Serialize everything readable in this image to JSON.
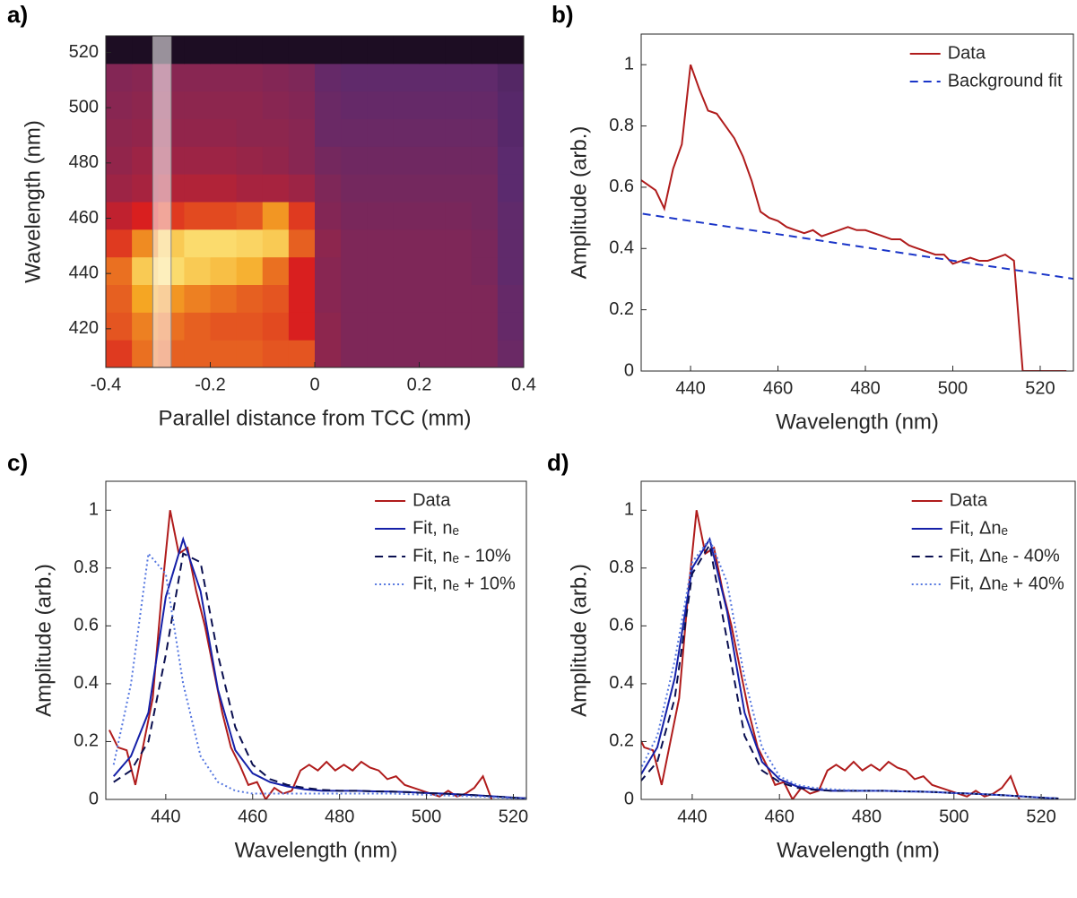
{
  "chart_data": [
    {
      "type": "heatmap",
      "panel_label": "a)",
      "xlabel": "Parallel distance from TCC (mm)",
      "ylabel": "Wavelength (nm)",
      "xlim": [
        -0.4,
        0.4
      ],
      "ylim": [
        406,
        526
      ],
      "xticks": [
        -0.4,
        -0.2,
        0,
        0.2,
        0.4
      ],
      "yticks": [
        420,
        440,
        460,
        480,
        500,
        520
      ],
      "colormap": [
        "#000000",
        "#5b2a6e",
        "#d91f1f",
        "#f5a623",
        "#ffff9e"
      ],
      "highlight": [
        -0.31,
        -0.275
      ],
      "xbins": [
        -0.4,
        -0.35,
        -0.3,
        -0.25,
        -0.2,
        -0.15,
        -0.1,
        -0.05,
        0,
        0.05,
        0.1,
        0.15,
        0.2,
        0.25,
        0.3,
        0.35,
        0.4
      ],
      "ybins": [
        406,
        416,
        426,
        436,
        446,
        456,
        466,
        476,
        486,
        496,
        506,
        516,
        526
      ],
      "values": [
        [
          0.55,
          0.65,
          0.62,
          0.62,
          0.62,
          0.62,
          0.6,
          0.6,
          0.35,
          0.32,
          0.32,
          0.32,
          0.32,
          0.32,
          0.32,
          0.28
        ],
        [
          0.6,
          0.68,
          0.65,
          0.62,
          0.6,
          0.6,
          0.58,
          0.5,
          0.35,
          0.32,
          0.32,
          0.32,
          0.32,
          0.32,
          0.32,
          0.27
        ],
        [
          0.62,
          0.75,
          0.72,
          0.68,
          0.65,
          0.62,
          0.6,
          0.5,
          0.34,
          0.32,
          0.32,
          0.32,
          0.32,
          0.32,
          0.32,
          0.27
        ],
        [
          0.65,
          0.85,
          0.9,
          0.85,
          0.82,
          0.78,
          0.65,
          0.5,
          0.34,
          0.32,
          0.32,
          0.32,
          0.32,
          0.32,
          0.31,
          0.26
        ],
        [
          0.55,
          0.7,
          0.85,
          0.9,
          0.9,
          0.88,
          0.85,
          0.62,
          0.35,
          0.32,
          0.32,
          0.32,
          0.32,
          0.32,
          0.31,
          0.26
        ],
        [
          0.45,
          0.5,
          0.55,
          0.58,
          0.58,
          0.6,
          0.72,
          0.55,
          0.33,
          0.31,
          0.31,
          0.31,
          0.31,
          0.31,
          0.3,
          0.26
        ],
        [
          0.38,
          0.4,
          0.42,
          0.42,
          0.42,
          0.4,
          0.4,
          0.38,
          0.32,
          0.3,
          0.3,
          0.3,
          0.3,
          0.3,
          0.3,
          0.25
        ],
        [
          0.36,
          0.38,
          0.38,
          0.38,
          0.38,
          0.37,
          0.36,
          0.34,
          0.3,
          0.29,
          0.29,
          0.29,
          0.29,
          0.29,
          0.29,
          0.25
        ],
        [
          0.35,
          0.36,
          0.36,
          0.36,
          0.36,
          0.35,
          0.35,
          0.34,
          0.28,
          0.28,
          0.28,
          0.28,
          0.28,
          0.28,
          0.28,
          0.24
        ],
        [
          0.34,
          0.35,
          0.35,
          0.35,
          0.35,
          0.35,
          0.34,
          0.33,
          0.28,
          0.27,
          0.27,
          0.27,
          0.27,
          0.27,
          0.27,
          0.24
        ],
        [
          0.33,
          0.34,
          0.34,
          0.34,
          0.34,
          0.34,
          0.33,
          0.32,
          0.27,
          0.26,
          0.26,
          0.26,
          0.26,
          0.26,
          0.26,
          0.23
        ],
        [
          0.08,
          0.08,
          0.08,
          0.08,
          0.08,
          0.08,
          0.08,
          0.08,
          0.08,
          0.08,
          0.08,
          0.08,
          0.08,
          0.08,
          0.08,
          0.08
        ]
      ]
    },
    {
      "type": "line",
      "panel_label": "b)",
      "xlabel": "Wavelength (nm)",
      "ylabel": "Amplitude (arb.)",
      "xlim": [
        428.7,
        527.6
      ],
      "ylim": [
        0,
        1.1
      ],
      "xticks": [
        440,
        460,
        480,
        500,
        520
      ],
      "yticks": [
        0,
        0.2,
        0.4,
        0.6,
        0.8,
        1
      ],
      "legend": "upper right",
      "series": [
        {
          "name": "Data",
          "color": "#b01c1c",
          "dash": "solid",
          "x": [
            428,
            430,
            432,
            434,
            436,
            438,
            440,
            442,
            444,
            446,
            448,
            450,
            452,
            454,
            456,
            458,
            460,
            462,
            464,
            466,
            468,
            470,
            472,
            474,
            476,
            478,
            480,
            482,
            484,
            486,
            488,
            490,
            492,
            494,
            496,
            498,
            500,
            502,
            504,
            506,
            508,
            510,
            512,
            514,
            516,
            518,
            520,
            522,
            524,
            526
          ],
          "values": [
            0.63,
            0.61,
            0.59,
            0.53,
            0.66,
            0.74,
            1.0,
            0.92,
            0.85,
            0.84,
            0.8,
            0.76,
            0.7,
            0.62,
            0.52,
            0.5,
            0.49,
            0.47,
            0.46,
            0.45,
            0.46,
            0.44,
            0.45,
            0.46,
            0.47,
            0.46,
            0.46,
            0.45,
            0.44,
            0.43,
            0.43,
            0.41,
            0.4,
            0.39,
            0.38,
            0.38,
            0.35,
            0.36,
            0.37,
            0.36,
            0.36,
            0.37,
            0.38,
            0.36,
            0,
            0,
            0,
            0,
            0,
            0
          ]
        },
        {
          "name": "Background fit",
          "color": "#1a35c8",
          "dash": "dashed",
          "x": [
            426,
            528
          ],
          "values": [
            0.52,
            0.3
          ]
        }
      ]
    },
    {
      "type": "line",
      "panel_label": "c)",
      "xlabel": "Wavelength (nm)",
      "ylabel": "Amplitude (arb.)",
      "xlim": [
        426.2,
        523
      ],
      "ylim": [
        0,
        1.1
      ],
      "xticks": [
        440,
        460,
        480,
        500,
        520
      ],
      "yticks": [
        0,
        0.2,
        0.4,
        0.6,
        0.8,
        1
      ],
      "legend": "upper right",
      "series": [
        {
          "name": "Data",
          "color": "#b01c1c",
          "dash": "solid",
          "x": [
            427,
            429,
            431,
            433,
            435,
            437,
            439,
            441,
            443,
            445,
            447,
            449,
            451,
            453,
            455,
            457,
            459,
            461,
            463,
            465,
            467,
            469,
            471,
            473,
            475,
            477,
            479,
            481,
            483,
            485,
            487,
            489,
            491,
            493,
            495,
            497,
            499,
            501,
            503,
            505,
            507,
            509,
            511,
            513,
            515
          ],
          "values": [
            0.24,
            0.18,
            0.17,
            0.05,
            0.2,
            0.35,
            0.7,
            1.0,
            0.85,
            0.87,
            0.72,
            0.6,
            0.45,
            0.3,
            0.18,
            0.12,
            0.05,
            0.06,
            0,
            0.04,
            0.02,
            0.03,
            0.1,
            0.12,
            0.1,
            0.13,
            0.1,
            0.12,
            0.1,
            0.13,
            0.11,
            0.1,
            0.07,
            0.08,
            0.05,
            0.04,
            0.03,
            0.02,
            0.01,
            0.03,
            0.01,
            0.02,
            0.04,
            0.08,
            0
          ]
        },
        {
          "name": "Fit, nₑ",
          "color": "#1520a8",
          "dash": "solid",
          "x": [
            428,
            432,
            436,
            440,
            444,
            448,
            452,
            456,
            460,
            464,
            468,
            472,
            476,
            480,
            484,
            488,
            492,
            496,
            500,
            504,
            508,
            512,
            516,
            520,
            524
          ],
          "values": [
            0.08,
            0.15,
            0.3,
            0.7,
            0.9,
            0.72,
            0.38,
            0.17,
            0.09,
            0.06,
            0.045,
            0.035,
            0.03,
            0.03,
            0.03,
            0.028,
            0.027,
            0.025,
            0.022,
            0.02,
            0.017,
            0.014,
            0.01,
            0.006,
            0.003
          ]
        },
        {
          "name": "Fit, nₑ - 10%",
          "color": "#0a0f50",
          "dash": "dashed",
          "x": [
            428,
            432,
            436,
            440,
            444,
            448,
            452,
            456,
            460,
            464,
            468,
            472,
            476,
            480,
            484,
            488,
            492,
            496,
            500,
            504,
            508,
            512,
            516,
            520,
            524
          ],
          "values": [
            0.06,
            0.1,
            0.2,
            0.5,
            0.85,
            0.82,
            0.5,
            0.25,
            0.12,
            0.07,
            0.05,
            0.04,
            0.033,
            0.03,
            0.03,
            0.028,
            0.027,
            0.025,
            0.022,
            0.02,
            0.017,
            0.014,
            0.01,
            0.006,
            0.003
          ]
        },
        {
          "name": "Fit, nₑ + 10%",
          "color": "#5577e0",
          "dash": "dotted",
          "x": [
            428,
            432,
            436,
            440,
            444,
            448,
            452,
            456,
            460,
            464,
            468,
            472,
            476,
            480,
            484,
            488,
            492,
            496,
            500,
            504,
            508,
            512,
            516,
            520,
            524
          ],
          "values": [
            0.12,
            0.4,
            0.85,
            0.78,
            0.4,
            0.15,
            0.06,
            0.03,
            0.02,
            0.02,
            0.02,
            0.02,
            0.02,
            0.02,
            0.02,
            0.02,
            0.02,
            0.018,
            0.016,
            0.014,
            0.012,
            0.01,
            0.007,
            0.004,
            0.002
          ]
        }
      ]
    },
    {
      "type": "line",
      "panel_label": "d)",
      "xlabel": "Wavelength (nm)",
      "ylabel": "Amplitude (arb.)",
      "xlim": [
        428.3,
        527.8
      ],
      "ylim": [
        0,
        1.1
      ],
      "xticks": [
        440,
        460,
        480,
        500,
        520
      ],
      "yticks": [
        0,
        0.2,
        0.4,
        0.6,
        0.8,
        1
      ],
      "legend": "upper right",
      "series": [
        {
          "name": "Data",
          "color": "#b01c1c",
          "dash": "solid",
          "x": [
            427,
            429,
            431,
            433,
            435,
            437,
            439,
            441,
            443,
            445,
            447,
            449,
            451,
            453,
            455,
            457,
            459,
            461,
            463,
            465,
            467,
            469,
            471,
            473,
            475,
            477,
            479,
            481,
            483,
            485,
            487,
            489,
            491,
            493,
            495,
            497,
            499,
            501,
            503,
            505,
            507,
            509,
            511,
            513,
            515
          ],
          "values": [
            0.24,
            0.18,
            0.17,
            0.05,
            0.2,
            0.35,
            0.7,
            1.0,
            0.85,
            0.87,
            0.72,
            0.6,
            0.45,
            0.3,
            0.18,
            0.12,
            0.05,
            0.06,
            0,
            0.04,
            0.02,
            0.03,
            0.1,
            0.12,
            0.1,
            0.13,
            0.1,
            0.12,
            0.1,
            0.13,
            0.11,
            0.1,
            0.07,
            0.08,
            0.05,
            0.04,
            0.03,
            0.02,
            0.01,
            0.03,
            0.01,
            0.02,
            0.04,
            0.08,
            0
          ]
        },
        {
          "name": "Fit, Δnₑ",
          "color": "#1520a8",
          "dash": "solid",
          "x": [
            428,
            432,
            436,
            440,
            444,
            448,
            452,
            456,
            460,
            464,
            468,
            472,
            476,
            480,
            484,
            488,
            492,
            496,
            500,
            504,
            508,
            512,
            516,
            520,
            524
          ],
          "values": [
            0.08,
            0.18,
            0.42,
            0.8,
            0.9,
            0.65,
            0.3,
            0.13,
            0.07,
            0.045,
            0.035,
            0.03,
            0.03,
            0.03,
            0.03,
            0.028,
            0.027,
            0.025,
            0.022,
            0.02,
            0.017,
            0.014,
            0.01,
            0.006,
            0.003
          ]
        },
        {
          "name": "Fit, Δnₑ - 40%",
          "color": "#0a0f50",
          "dash": "dashed",
          "x": [
            428,
            432,
            436,
            440,
            444,
            448,
            452,
            456,
            460,
            464,
            468,
            472,
            476,
            480,
            484,
            488,
            492,
            496,
            500,
            504,
            508,
            512,
            516,
            520,
            524
          ],
          "values": [
            0.06,
            0.13,
            0.35,
            0.78,
            0.88,
            0.55,
            0.22,
            0.1,
            0.06,
            0.04,
            0.033,
            0.03,
            0.03,
            0.03,
            0.03,
            0.028,
            0.027,
            0.025,
            0.022,
            0.02,
            0.017,
            0.014,
            0.01,
            0.006,
            0.003
          ]
        },
        {
          "name": "Fit, Δnₑ + 40%",
          "color": "#5577e0",
          "dash": "dotted",
          "x": [
            428,
            432,
            436,
            440,
            444,
            448,
            452,
            456,
            460,
            464,
            468,
            472,
            476,
            480,
            484,
            488,
            492,
            496,
            500,
            504,
            508,
            512,
            516,
            520,
            524
          ],
          "values": [
            0.1,
            0.22,
            0.48,
            0.82,
            0.9,
            0.75,
            0.42,
            0.18,
            0.08,
            0.05,
            0.04,
            0.035,
            0.032,
            0.03,
            0.03,
            0.028,
            0.027,
            0.025,
            0.022,
            0.02,
            0.017,
            0.014,
            0.01,
            0.006,
            0.003
          ]
        }
      ]
    }
  ]
}
